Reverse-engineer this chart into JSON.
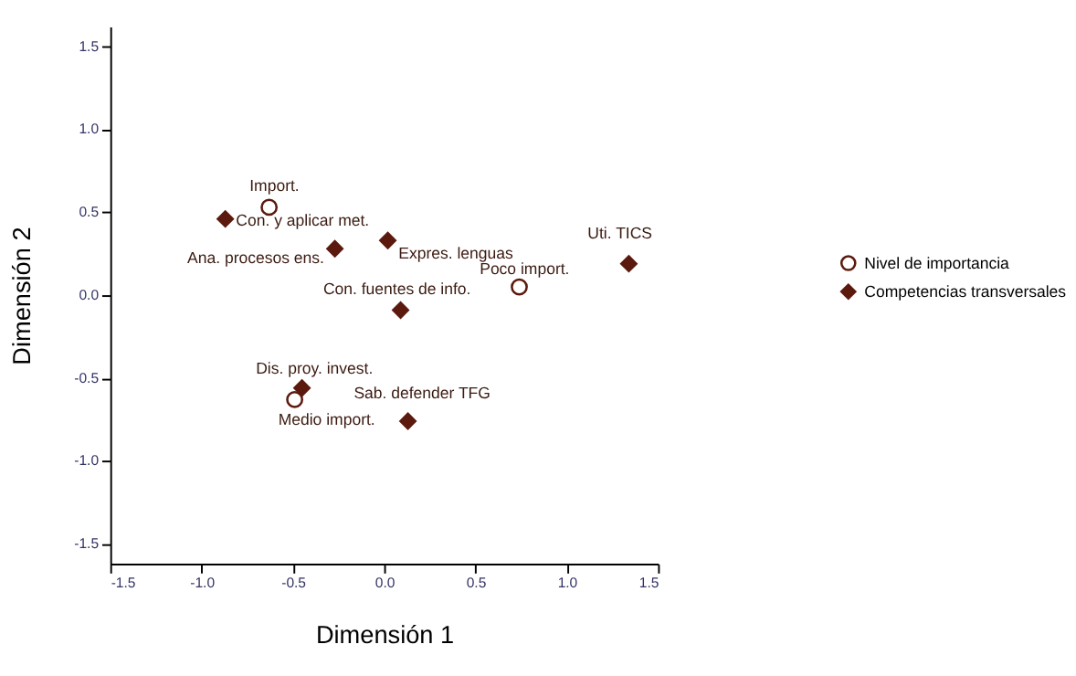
{
  "chart_data": {
    "type": "scatter",
    "xlabel": "Dimensión 1",
    "ylabel": "Dimensión 2",
    "xlim": [
      -1.5,
      1.5
    ],
    "ylim": [
      -1.62,
      1.62
    ],
    "xticks": [
      {
        "value": -1.5,
        "label": "-1.5"
      },
      {
        "value": -1,
        "label": "-1.0"
      },
      {
        "value": -0.5,
        "label": "-0.5"
      },
      {
        "value": 0,
        "label": "0.0"
      },
      {
        "value": 0.5,
        "label": "0.5"
      },
      {
        "value": 1,
        "label": "1.0"
      },
      {
        "value": 1.5,
        "label": "1.5"
      }
    ],
    "yticks": [
      {
        "value": -1.5,
        "label": "-1.5"
      },
      {
        "value": -1,
        "label": "-1.0"
      },
      {
        "value": -0.5,
        "label": "-0.5"
      },
      {
        "value": 0,
        "label": "0.0"
      },
      {
        "value": 0.5,
        "label": "0.5"
      },
      {
        "value": 1,
        "label": "1.0"
      },
      {
        "value": 1.5,
        "label": "1.5"
      }
    ],
    "grid": false,
    "legend": "right",
    "series": [
      {
        "name": "Nivel de importancia",
        "color": "#5c1a0e",
        "marker": "circle",
        "x": [
          -0.63,
          0.74,
          -0.49
        ],
        "values": [
          0.53,
          0.05,
          -0.63
        ]
      },
      {
        "name": "Competencias transversales",
        "color": "#5c1a0e",
        "marker": "diamond",
        "x": [
          -0.87,
          -0.27,
          0.02,
          0.09,
          1.34,
          -0.45,
          0.13
        ],
        "values": [
          0.46,
          0.28,
          0.33,
          -0.09,
          0.19,
          -0.56,
          -0.76
        ]
      }
    ],
    "annotations": [
      {
        "text": "Import.",
        "x": -0.63,
        "y": 0.53
      },
      {
        "text": "Poco import.",
        "x": 0.74,
        "y": 0.05
      },
      {
        "text": "Medio import.",
        "x": -0.49,
        "y": -0.63
      },
      {
        "text": "Con. y aplicar met.",
        "x": -0.87,
        "y": 0.46
      },
      {
        "text": "Ana. procesos ens.",
        "x": -0.27,
        "y": 0.28
      },
      {
        "text": "Expres. lenguas",
        "x": 0.02,
        "y": 0.33
      },
      {
        "text": "Con. fuentes de info.",
        "x": 0.09,
        "y": -0.09
      },
      {
        "text": "Uti. TICS",
        "x": 1.34,
        "y": 0.19
      },
      {
        "text": "Dis. proy. invest.",
        "x": -0.45,
        "y": -0.56
      },
      {
        "text": "Sab. defender TFG",
        "x": 0.13,
        "y": -0.76
      }
    ]
  }
}
